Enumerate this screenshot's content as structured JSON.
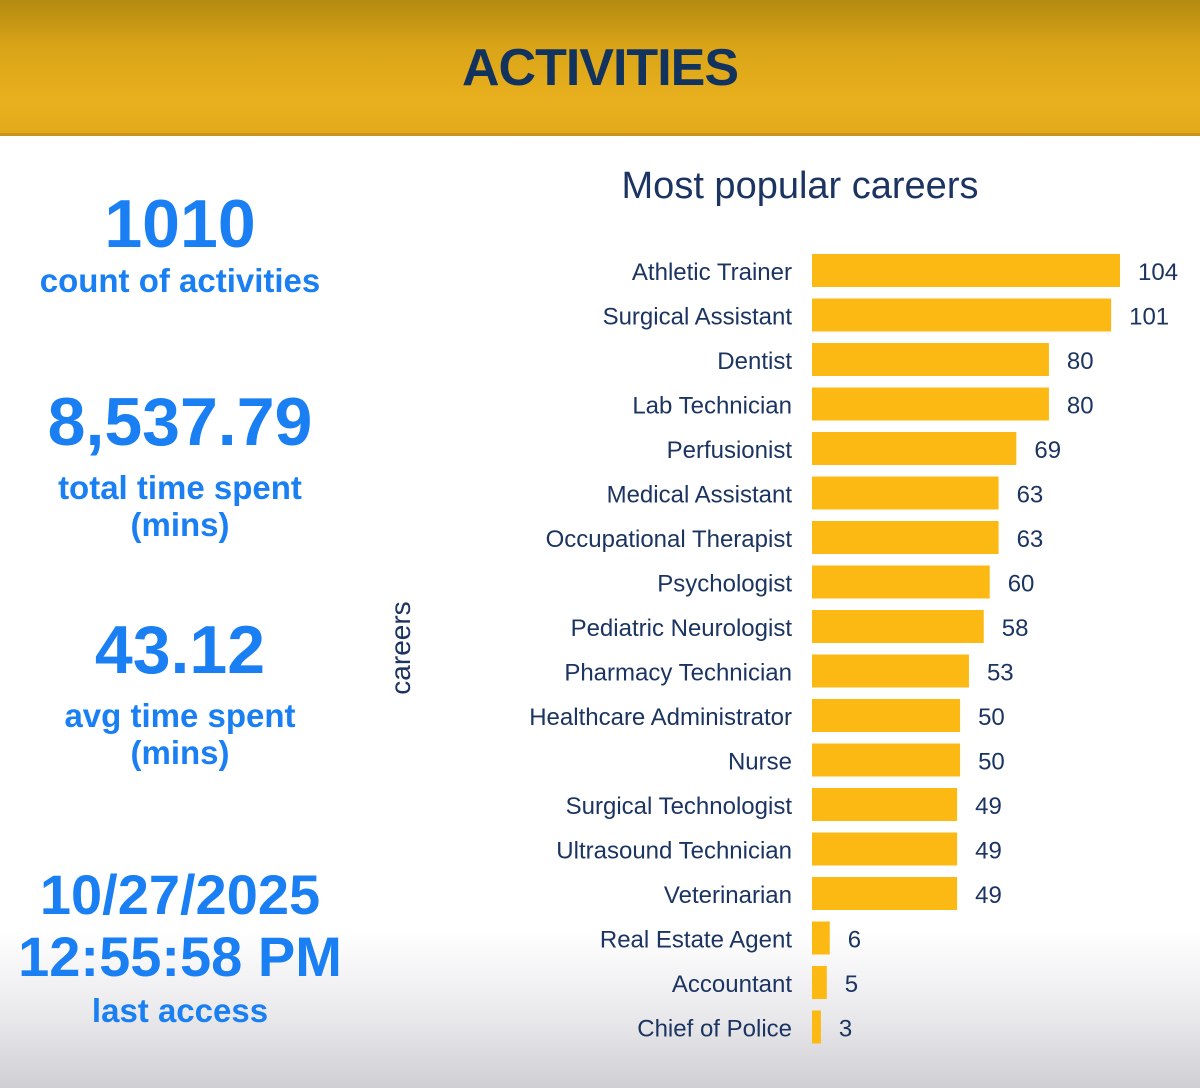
{
  "header": {
    "title": "ACTIVITIES"
  },
  "kpis": {
    "count": {
      "value": "1010",
      "label": "count of activities"
    },
    "total_time": {
      "value": "8,537.79",
      "label_line1": "total time spent",
      "label_line2": "(mins)"
    },
    "avg_time": {
      "value": "43.12",
      "label_line1": "avg time spent",
      "label_line2": "(mins)"
    },
    "last_access": {
      "date": "10/27/2025",
      "time": "12:55:58 PM",
      "label": "last access"
    }
  },
  "colors": {
    "bar": "#fdb913",
    "title": "#1b3461",
    "axis_text": "#1b3461",
    "kpi": "#1a7ff2"
  },
  "chart_data": {
    "type": "bar",
    "orientation": "horizontal",
    "title": "Most popular careers",
    "ylabel": "careers",
    "xlabel": "",
    "xlim": [
      0,
      104
    ],
    "categories": [
      "Athletic Trainer",
      "Surgical Assistant",
      "Dentist",
      "Lab Technician",
      "Perfusionist",
      "Medical Assistant",
      "Occupational Therapist",
      "Psychologist",
      "Pediatric Neurologist",
      "Pharmacy Technician",
      "Healthcare Administrator",
      "Nurse",
      "Surgical Technologist",
      "Ultrasound Technician",
      "Veterinarian",
      "Real Estate Agent",
      "Accountant",
      "Chief of Police"
    ],
    "values": [
      104,
      101,
      80,
      80,
      69,
      63,
      63,
      60,
      58,
      53,
      50,
      50,
      49,
      49,
      49,
      6,
      5,
      3
    ]
  }
}
